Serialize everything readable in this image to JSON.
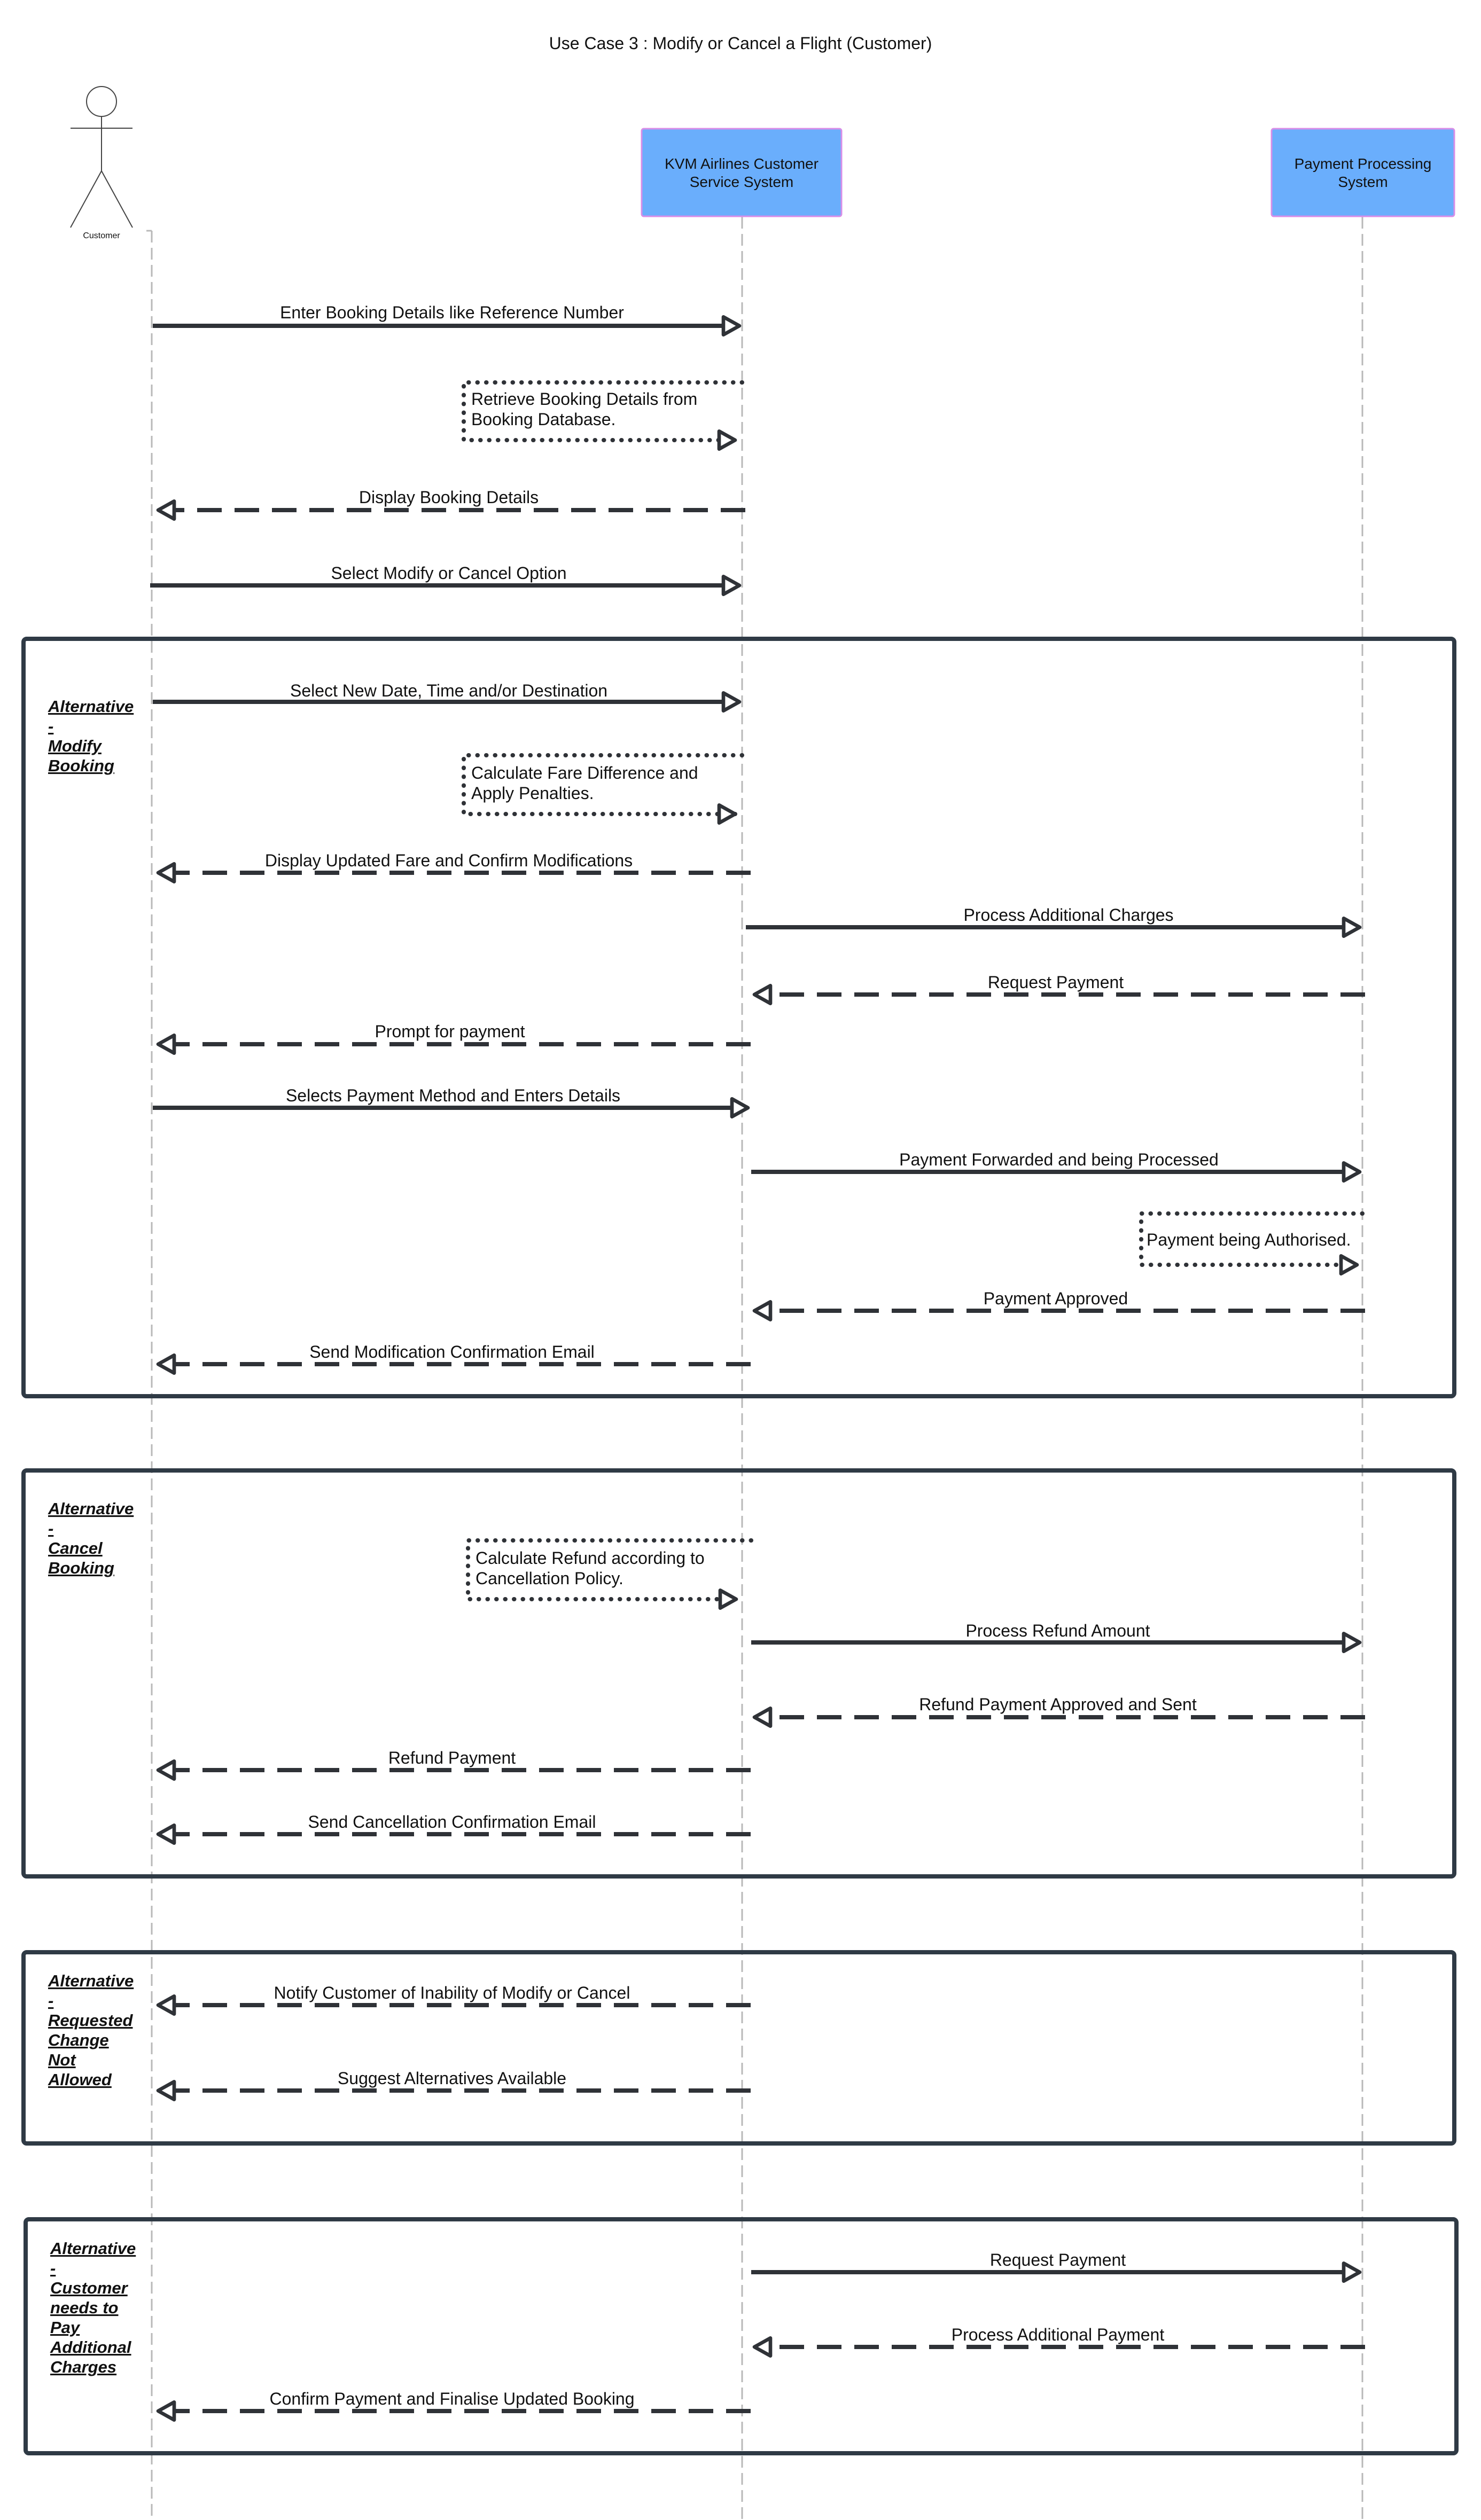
{
  "title": "Use Case 3 : Modify or Cancel a Flight (Customer)",
  "colors": {
    "participant_fill": "#6aaefc",
    "participant_border": "#d78ee8",
    "line": "#2f3237",
    "lifeline": "#b8b8b8",
    "frame": "#2f3a45"
  },
  "actor": {
    "label": "Customer",
    "icon": "stick-figure-actor-icon"
  },
  "participants": [
    {
      "lines": [
        "KVM Airlines Customer",
        "Service System"
      ]
    },
    {
      "lines": [
        "Payment Processing",
        "System"
      ]
    }
  ],
  "messages": [
    {
      "text": "Enter Booking Details like Reference Number",
      "style": "sync"
    },
    {
      "text": "Retrieve Booking Details from Booking Database.",
      "lines": [
        "Retrieve Booking Details from",
        "Booking Database."
      ],
      "style": "self"
    },
    {
      "text": "Display Booking Details",
      "style": "return"
    },
    {
      "text": "Select Modify or Cancel Option",
      "style": "sync"
    },
    {
      "text": "Select New Date, Time and/or Destination",
      "style": "sync"
    },
    {
      "text": "Calculate Fare Difference and Apply Penalties.",
      "lines": [
        "Calculate Fare Difference and",
        "Apply Penalties."
      ],
      "style": "self"
    },
    {
      "text": "Display Updated Fare and Confirm Modifications",
      "style": "return"
    },
    {
      "text": "Process Additional Charges",
      "style": "sync"
    },
    {
      "text": "Request Payment",
      "style": "return"
    },
    {
      "text": "Prompt for payment",
      "style": "return"
    },
    {
      "text": "Selects Payment Method and Enters Details",
      "style": "sync"
    },
    {
      "text": "Payment Forwarded and being Processed",
      "style": "sync"
    },
    {
      "text": "Payment being Authorised.",
      "lines": [
        "Payment being Authorised."
      ],
      "style": "self"
    },
    {
      "text": "Payment Approved",
      "style": "return"
    },
    {
      "text": "Send Modification Confirmation Email",
      "style": "return"
    },
    {
      "text": "Calculate Refund according to Cancellation Policy.",
      "lines": [
        "Calculate Refund according to",
        "Cancellation Policy."
      ],
      "style": "self"
    },
    {
      "text": "Process Refund Amount",
      "style": "sync"
    },
    {
      "text": "Refund Payment Approved and Sent",
      "style": "return"
    },
    {
      "text": "Refund Payment",
      "style": "return"
    },
    {
      "text": "Send Cancellation Confirmation Email",
      "style": "return"
    },
    {
      "text": "Notify Customer of Inability of Modify or Cancel",
      "style": "return"
    },
    {
      "text": "Suggest Alternatives Available",
      "style": "return"
    },
    {
      "text": "Request Payment",
      "style": "sync"
    },
    {
      "text": "Process Additional Payment",
      "style": "return"
    },
    {
      "text": "Confirm Payment and Finalise Updated Booking",
      "style": "return"
    }
  ],
  "frames": [
    {
      "lines": [
        "Alternative",
        "-",
        "Modify",
        "Booking"
      ]
    },
    {
      "lines": [
        "Alternative",
        "-",
        "Cancel",
        "Booking"
      ]
    },
    {
      "lines": [
        "Alternative",
        "-",
        "Requested",
        "Change",
        "Not",
        "Allowed"
      ]
    },
    {
      "lines": [
        "Alternative",
        "-",
        "Customer",
        "needs to",
        "Pay",
        "Additional",
        "Charges"
      ]
    }
  ]
}
